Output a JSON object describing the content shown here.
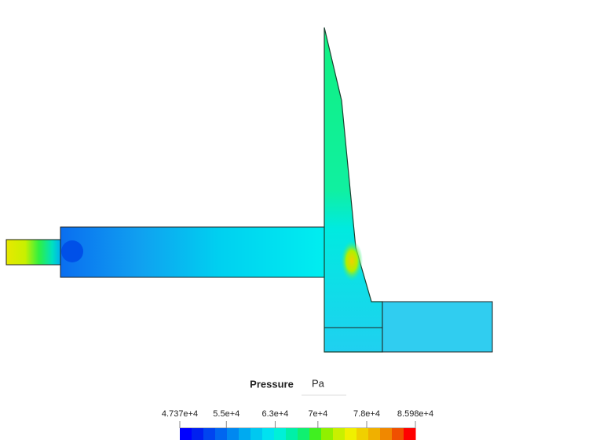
{
  "legend": {
    "title": "Pressure",
    "unit": "Pa",
    "range": [
      47370,
      85980
    ],
    "ticks": [
      {
        "value": 47370,
        "label": "4.737e+4"
      },
      {
        "value": 55000,
        "label": "5.5e+4"
      },
      {
        "value": 63000,
        "label": "6.3e+4"
      },
      {
        "value": 70000,
        "label": "7e+4"
      },
      {
        "value": 78000,
        "label": "7.8e+4"
      },
      {
        "value": 85980,
        "label": "8.598e+4"
      }
    ],
    "colors": [
      "#0000ff",
      "#0020f0",
      "#0044f0",
      "#0066f0",
      "#0088f0",
      "#00aaf0",
      "#00c8f0",
      "#00e2f0",
      "#00f0d8",
      "#00f0a8",
      "#10f070",
      "#40f020",
      "#90f000",
      "#c8f000",
      "#f0f000",
      "#f0d000",
      "#f0b000",
      "#f08800",
      "#f05000",
      "#ff0000"
    ]
  }
}
